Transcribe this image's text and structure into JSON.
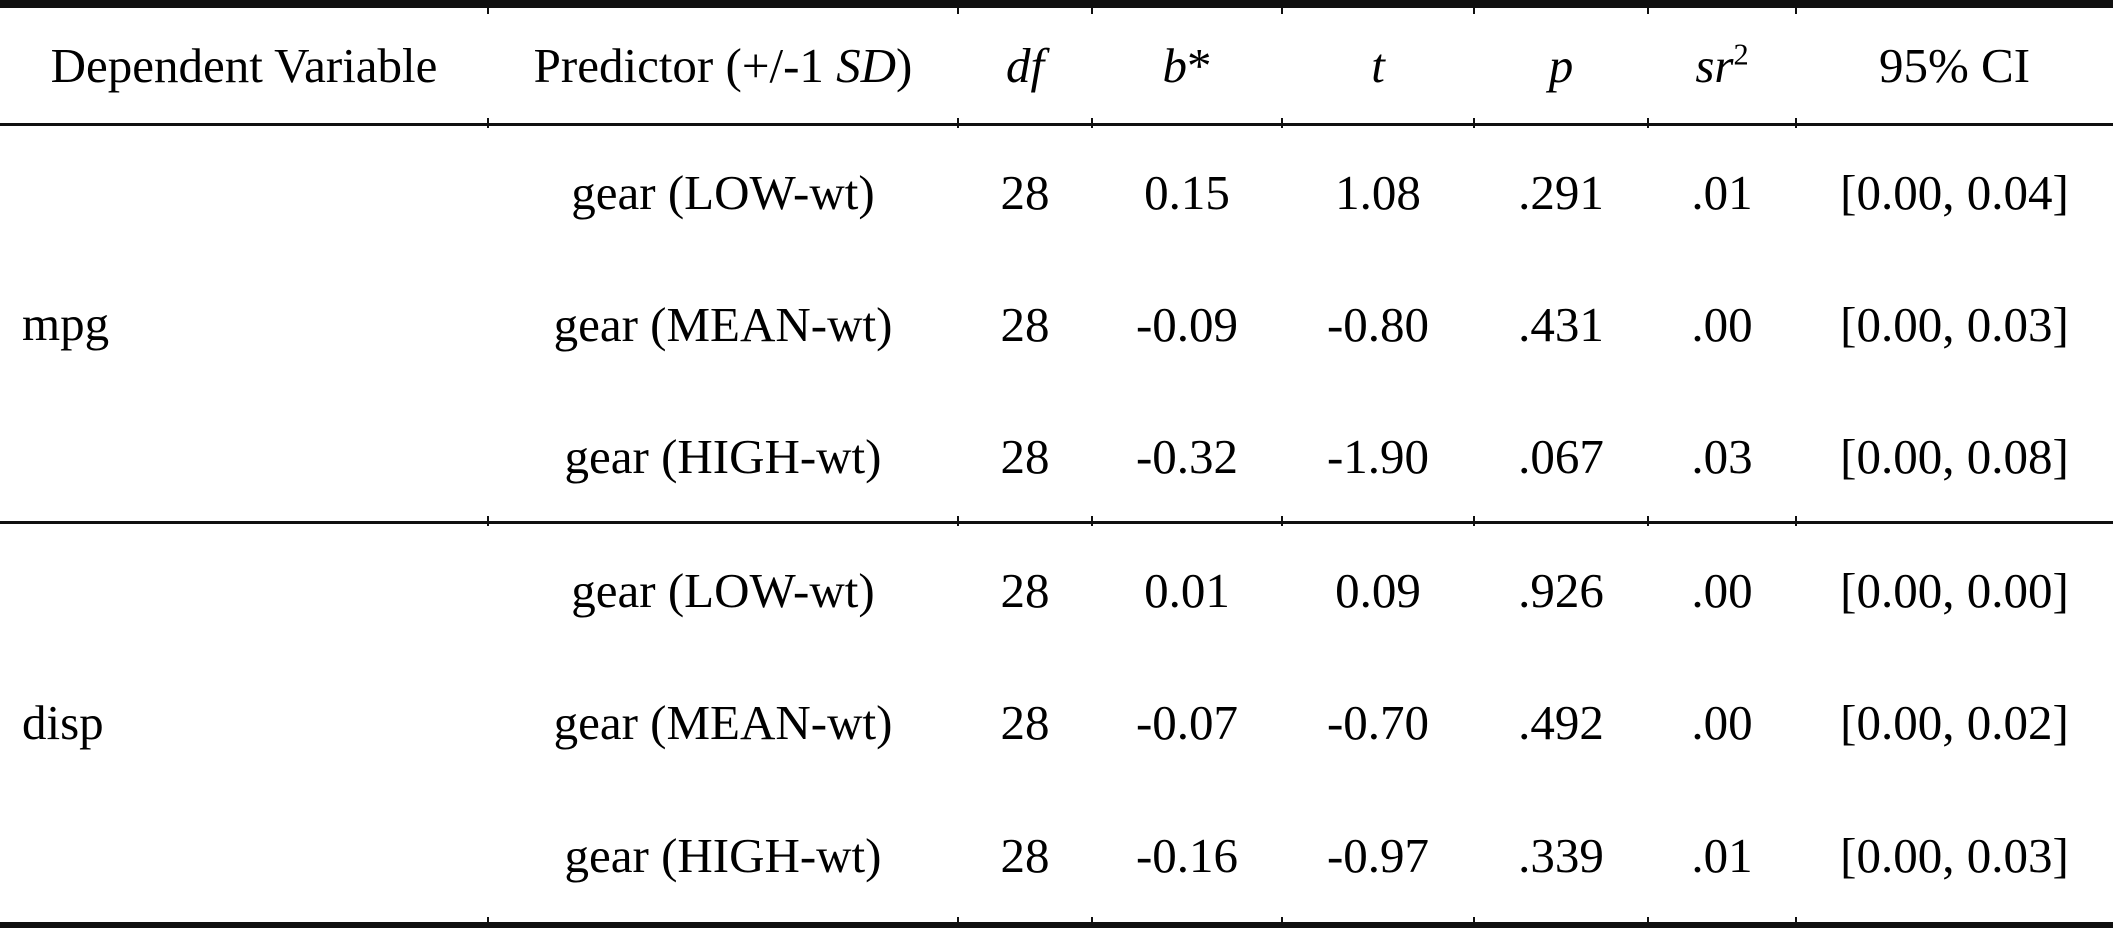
{
  "header": {
    "dependent_variable": "Dependent Variable",
    "predictor_prefix": "Predictor (+/-1 ",
    "predictor_sd": "SD",
    "predictor_suffix": ")",
    "df": "df",
    "b": "b",
    "b_star": "*",
    "t": "t",
    "p": "p",
    "sr": "sr",
    "sr_sup": "2",
    "ci": "95% CI"
  },
  "sections": [
    {
      "dv": "mpg",
      "rows": [
        {
          "predictor": "gear (LOW-wt)",
          "df": "28",
          "b": "0.15",
          "t": "1.08",
          "p": ".291",
          "sr2": ".01",
          "ci": "[0.00, 0.04]"
        },
        {
          "predictor": "gear (MEAN-wt)",
          "df": "28",
          "b": "-0.09",
          "t": "-0.80",
          "p": ".431",
          "sr2": ".00",
          "ci": "[0.00, 0.03]"
        },
        {
          "predictor": "gear (HIGH-wt)",
          "df": "28",
          "b": "-0.32",
          "t": "-1.90",
          "p": ".067",
          "sr2": ".03",
          "ci": "[0.00, 0.08]"
        }
      ]
    },
    {
      "dv": "disp",
      "rows": [
        {
          "predictor": "gear (LOW-wt)",
          "df": "28",
          "b": "0.01",
          "t": "0.09",
          "p": ".926",
          "sr2": ".00",
          "ci": "[0.00, 0.00]"
        },
        {
          "predictor": "gear (MEAN-wt)",
          "df": "28",
          "b": "-0.07",
          "t": "-0.70",
          "p": ".492",
          "sr2": ".00",
          "ci": "[0.00, 0.02]"
        },
        {
          "predictor": "gear (HIGH-wt)",
          "df": "28",
          "b": "-0.16",
          "t": "-0.97",
          "p": ".339",
          "sr2": ".01",
          "ci": "[0.00, 0.03]"
        }
      ]
    }
  ],
  "colors": {
    "text": "#000000",
    "rule": "#101010",
    "background": "#ffffff"
  }
}
